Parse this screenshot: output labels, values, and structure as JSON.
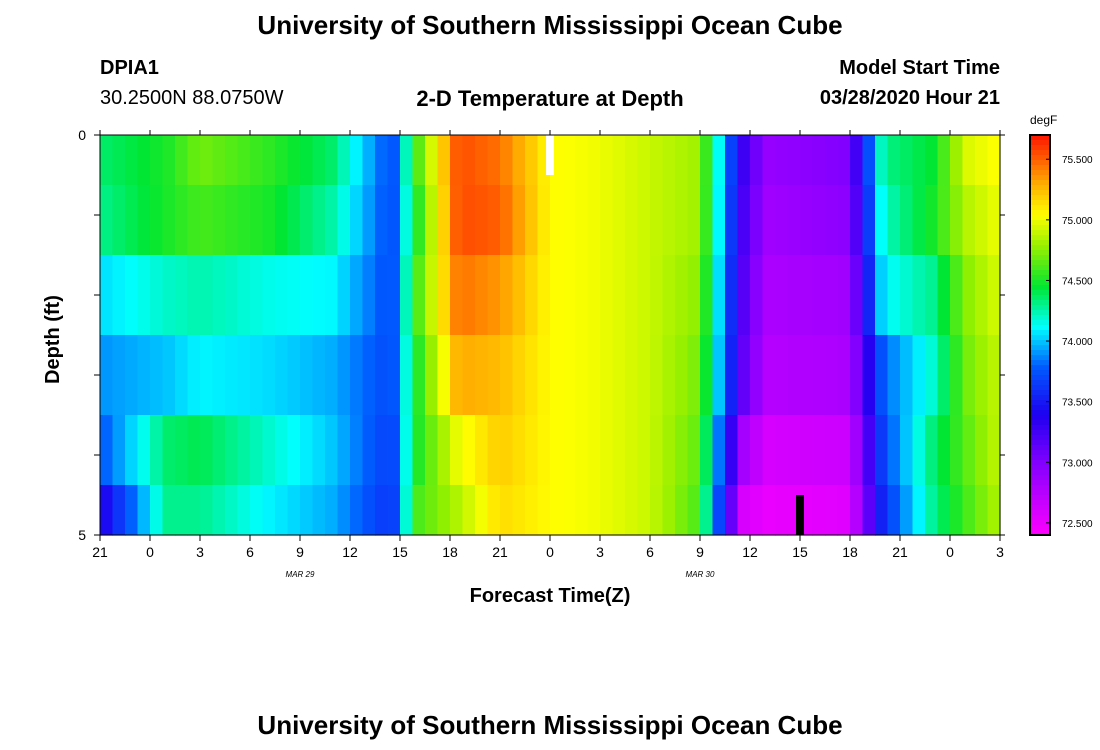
{
  "title_top": "University of Southern Mississippi Ocean Cube",
  "title_bottom": "University of Southern Mississippi Ocean Cube",
  "station_id": "DPIA1",
  "station_coords": "30.2500N 88.0750W",
  "model_start_label": "Model Start Time",
  "model_start_value": "03/28/2020 Hour 21",
  "chart_data": {
    "type": "heatmap",
    "title": "2-D Temperature at Depth",
    "xlabel": "Forecast Time(Z)",
    "ylabel": "Depth (ft)",
    "x_ticks": [
      "21",
      "0",
      "3",
      "6",
      "9",
      "12",
      "15",
      "18",
      "21",
      "0",
      "3",
      "6",
      "9",
      "12",
      "15",
      "18",
      "21",
      "0",
      "3"
    ],
    "x_range_hours": [
      0,
      54
    ],
    "month_labels": [
      {
        "text": "MAR 29",
        "hour": 15
      },
      {
        "text": "MAR 30",
        "hour": 39
      }
    ],
    "y_ticks": [
      "0",
      "5"
    ],
    "y_range_ft": [
      0,
      5
    ],
    "colorbar_unit": "degF",
    "colorbar_ticks": [
      "75.500",
      "75.000",
      "74.500",
      "74.000",
      "73.500",
      "73.000",
      "72.500"
    ],
    "colorbar_range": [
      72.4,
      75.7
    ],
    "depth_rows_ft": [
      0.25,
      1.0,
      2.0,
      3.0,
      4.0,
      4.75
    ],
    "control_hours": [
      0,
      4,
      6,
      10,
      14,
      17.5,
      19,
      21.5,
      24,
      27,
      30,
      33,
      36,
      38.5,
      40,
      45,
      47,
      50,
      52,
      54
    ],
    "control_values": [
      [
        74.35,
        74.5,
        74.7,
        74.55,
        74.35,
        73.7,
        74.6,
        75.55,
        75.45,
        75.05,
        75.0,
        74.9,
        74.8,
        73.3,
        72.9,
        73.0,
        74.3,
        74.45,
        74.95,
        75.05
      ],
      [
        74.3,
        74.5,
        74.6,
        74.5,
        74.25,
        73.7,
        74.5,
        75.55,
        75.5,
        75.05,
        75.0,
        74.9,
        74.8,
        73.25,
        72.85,
        72.95,
        74.2,
        74.5,
        74.85,
        75.0
      ],
      [
        74.05,
        74.2,
        74.25,
        74.15,
        74.1,
        73.7,
        74.6,
        75.45,
        75.35,
        75.05,
        75.0,
        74.9,
        74.75,
        73.2,
        72.8,
        72.85,
        74.1,
        74.3,
        74.75,
        74.95
      ],
      [
        73.9,
        74.0,
        74.1,
        74.05,
        73.95,
        73.7,
        74.5,
        75.3,
        75.25,
        75.05,
        75.0,
        74.9,
        74.7,
        73.15,
        72.75,
        72.8,
        73.8,
        74.2,
        74.7,
        74.9
      ],
      [
        73.75,
        74.35,
        74.4,
        74.2,
        74.0,
        73.65,
        74.5,
        75.0,
        75.2,
        75.05,
        75.0,
        74.9,
        74.65,
        72.85,
        72.6,
        72.65,
        73.7,
        74.35,
        74.65,
        74.9
      ],
      [
        73.35,
        74.3,
        74.3,
        74.1,
        73.95,
        73.6,
        74.6,
        74.85,
        75.15,
        75.05,
        75.0,
        74.9,
        74.6,
        72.6,
        72.5,
        72.55,
        73.6,
        74.3,
        74.6,
        74.85
      ]
    ],
    "markers": [
      {
        "hour": 27,
        "depth_ft_from": 0,
        "depth_ft_to": 0.5,
        "color": "#ffffff"
      },
      {
        "hour": 42,
        "depth_ft_from": 4.5,
        "depth_ft_to": 5,
        "color": "#000000"
      }
    ]
  }
}
